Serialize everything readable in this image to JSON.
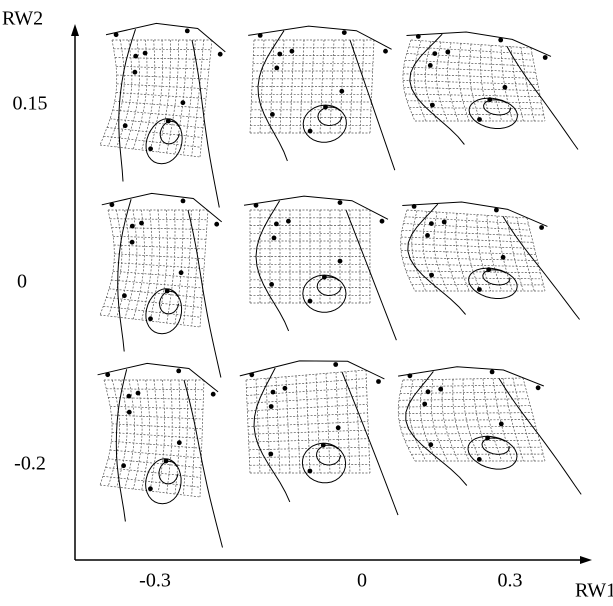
{
  "x_axis": {
    "label": "RW1",
    "ticks": [
      "-0.3",
      "0",
      "0.3"
    ]
  },
  "y_axis": {
    "label": "RW2",
    "ticks": [
      "0.15",
      "0",
      "-0.2"
    ]
  }
}
